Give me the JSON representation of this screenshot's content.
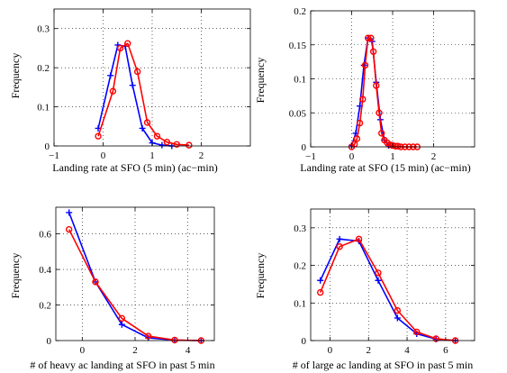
{
  "chart_data": [
    {
      "type": "line",
      "xlabel": "Landing rate at SFO (5 min) (ac−min)",
      "ylabel": "Frequency",
      "xlim": [
        -1,
        3
      ],
      "ylim": [
        0,
        0.35
      ],
      "xticks": [
        -1,
        0,
        1,
        2
      ],
      "yticks": [
        0,
        0.1,
        0.2,
        0.3
      ],
      "xtick_labels": [
        "−1",
        "0",
        "1",
        "2"
      ],
      "ytick_labels": [
        "0",
        "0.1",
        "0.2",
        "0.3"
      ],
      "grid": true,
      "series": [
        {
          "color": "#0000ff",
          "marker": "plus",
          "x": [
            -0.1,
            0.15,
            0.3,
            0.45,
            0.6,
            0.8,
            1.0,
            1.2,
            1.4
          ],
          "y": [
            0.045,
            0.18,
            0.258,
            0.255,
            0.155,
            0.045,
            0.008,
            0.002,
            0.0
          ]
        },
        {
          "color": "#ff0000",
          "marker": "circle",
          "x": [
            -0.1,
            0.2,
            0.35,
            0.5,
            0.7,
            0.9,
            1.1,
            1.3,
            1.5,
            1.75
          ],
          "y": [
            0.025,
            0.14,
            0.25,
            0.262,
            0.19,
            0.06,
            0.025,
            0.01,
            0.004,
            0.002
          ]
        }
      ]
    },
    {
      "type": "line",
      "xlabel": "Landing rate at SFO (15 min) (ac−min)",
      "ylabel": "Frequency",
      "xlim": [
        -1,
        3
      ],
      "ylim": [
        0,
        0.2
      ],
      "xticks": [
        -1,
        0,
        1,
        2
      ],
      "yticks": [
        0,
        0.05,
        0.1,
        0.15,
        0.2
      ],
      "xtick_labels": [
        "−1",
        "0",
        "1",
        "2"
      ],
      "ytick_labels": [
        "0",
        "0.05",
        "0.1",
        "0.15",
        "0.2"
      ],
      "grid": true,
      "series": [
        {
          "color": "#0000ff",
          "marker": "plus",
          "x": [
            0.0,
            0.1,
            0.2,
            0.3,
            0.4,
            0.5,
            0.6,
            0.7,
            0.8,
            0.9
          ],
          "y": [
            0.002,
            0.02,
            0.06,
            0.12,
            0.16,
            0.155,
            0.095,
            0.04,
            0.01,
            0.002
          ]
        },
        {
          "color": "#ff0000",
          "marker": "circle",
          "x": [
            0.0,
            0.07,
            0.13,
            0.2,
            0.27,
            0.33,
            0.4,
            0.47,
            0.53,
            0.6,
            0.67,
            0.73,
            0.8,
            0.87,
            0.93,
            1.0,
            1.07,
            1.13,
            1.2,
            1.3,
            1.4,
            1.5,
            1.6
          ],
          "y": [
            0.0,
            0.004,
            0.012,
            0.035,
            0.07,
            0.12,
            0.16,
            0.16,
            0.14,
            0.09,
            0.05,
            0.02,
            0.01,
            0.006,
            0.003,
            0.002,
            0.001,
            0.001,
            0.0,
            0.0,
            0.0,
            0.0,
            0.0
          ]
        }
      ]
    },
    {
      "type": "line",
      "xlabel": "# of heavy ac landing at SFO in past 5 min",
      "ylabel": "Frequency",
      "xlim": [
        -1,
        5
      ],
      "ylim": [
        0,
        0.75
      ],
      "xticks": [
        0,
        2,
        4
      ],
      "yticks": [
        0,
        0.2,
        0.4,
        0.6
      ],
      "xtick_labels": [
        "0",
        "2",
        "4"
      ],
      "ytick_labels": [
        "0",
        "0.2",
        "0.4",
        "0.6"
      ],
      "grid": true,
      "series": [
        {
          "color": "#0000ff",
          "marker": "plus",
          "x": [
            -0.5,
            0.5,
            1.5,
            2.5,
            3.5,
            4.5
          ],
          "y": [
            0.72,
            0.33,
            0.09,
            0.015,
            0.002,
            0.0
          ]
        },
        {
          "color": "#ff0000",
          "marker": "circle",
          "x": [
            -0.5,
            0.5,
            1.5,
            2.5,
            3.5,
            4.5
          ],
          "y": [
            0.625,
            0.33,
            0.125,
            0.025,
            0.003,
            0.0
          ]
        }
      ]
    },
    {
      "type": "line",
      "xlabel": "# of large ac landing at SFO in past 5 min",
      "ylabel": "Frequency",
      "xlim": [
        -1,
        7.5
      ],
      "ylim": [
        0,
        0.35
      ],
      "xticks": [
        0,
        2,
        4,
        6
      ],
      "yticks": [
        0,
        0.1,
        0.2,
        0.3
      ],
      "xtick_labels": [
        "0",
        "2",
        "4",
        "6"
      ],
      "ytick_labels": [
        "0",
        "0.1",
        "0.2",
        "0.3"
      ],
      "grid": true,
      "series": [
        {
          "color": "#0000ff",
          "marker": "plus",
          "x": [
            -0.5,
            0.5,
            1.5,
            2.5,
            3.5,
            4.5,
            5.5,
            6.5
          ],
          "y": [
            0.16,
            0.27,
            0.265,
            0.16,
            0.06,
            0.018,
            0.004,
            0.0
          ]
        },
        {
          "color": "#ff0000",
          "marker": "circle",
          "x": [
            -0.5,
            0.5,
            1.5,
            2.5,
            3.5,
            4.5,
            5.5,
            6.5
          ],
          "y": [
            0.128,
            0.25,
            0.27,
            0.18,
            0.08,
            0.023,
            0.005,
            0.0
          ]
        }
      ]
    }
  ]
}
